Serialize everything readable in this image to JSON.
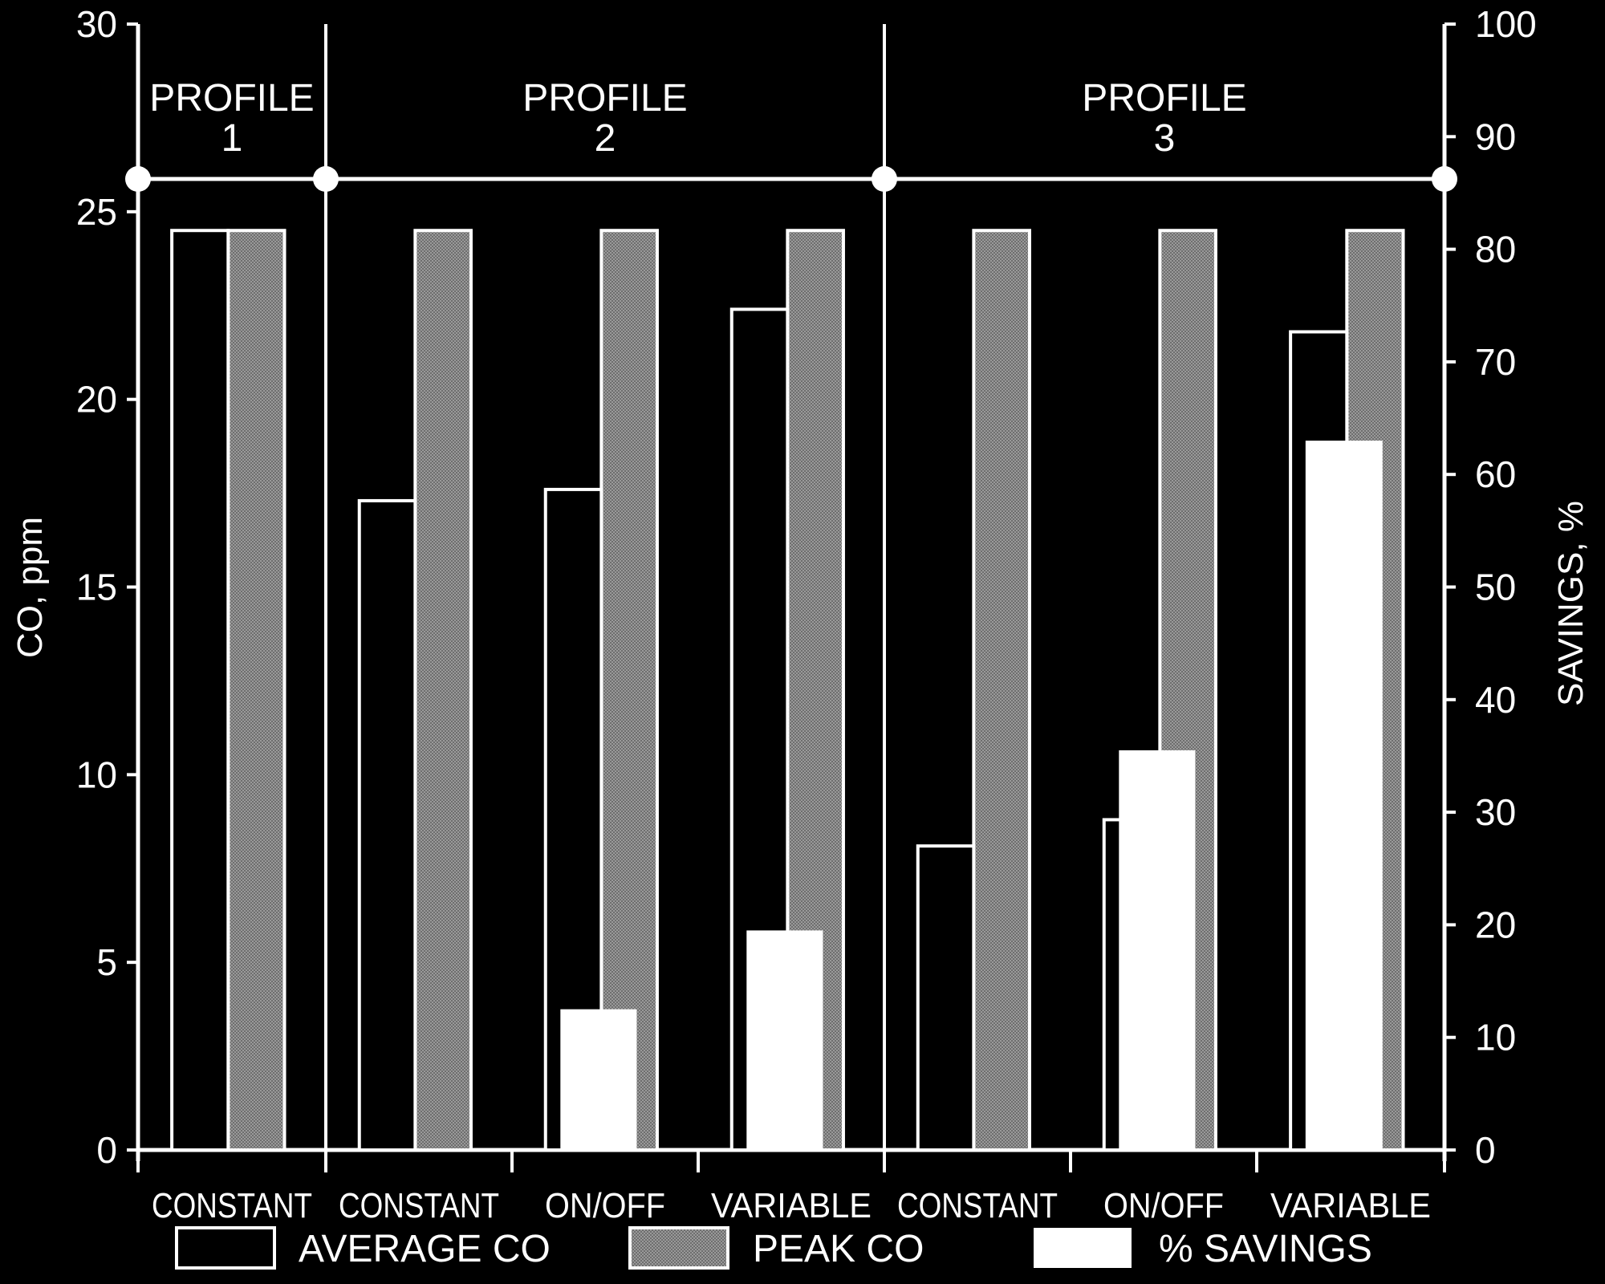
{
  "chart_data": {
    "type": "bar",
    "left_axis": {
      "label": "CO, ppm",
      "ylim": [
        0,
        30
      ],
      "ticks": [
        "0",
        "5",
        "10",
        "15",
        "20",
        "25",
        "30"
      ]
    },
    "right_axis": {
      "label": "SAVINGS, %",
      "ylim": [
        0,
        100
      ],
      "ticks": [
        "0",
        "10",
        "20",
        "30",
        "40",
        "50",
        "60",
        "70",
        "80",
        "90",
        "100"
      ]
    },
    "profiles": [
      {
        "label_line1": "PROFILE",
        "label_line2": "1",
        "span": [
          0,
          1
        ]
      },
      {
        "label_line1": "PROFILE",
        "label_line2": "2",
        "span": [
          1,
          4
        ]
      },
      {
        "label_line1": "PROFILE",
        "label_line2": "3",
        "span": [
          4,
          7
        ]
      }
    ],
    "categories": [
      "CONSTANT",
      "CONSTANT",
      "ON/OFF",
      "VARIABLE",
      "CONSTANT",
      "ON/OFF",
      "VARIABLE"
    ],
    "series": [
      {
        "name": "AVERAGE CO",
        "axis": "left",
        "values": [
          24.5,
          17.3,
          17.6,
          22.4,
          8.1,
          8.8,
          21.8
        ]
      },
      {
        "name": "PEAK CO",
        "axis": "left",
        "values": [
          24.5,
          24.5,
          24.5,
          24.5,
          24.5,
          24.5,
          24.5
        ]
      },
      {
        "name": "% SAVINGS",
        "axis": "right",
        "values": [
          0,
          0,
          12.5,
          19.5,
          0,
          35.5,
          63
        ]
      }
    ],
    "colors": {
      "background": "#000000",
      "axis": "#ffffff",
      "average": "#000000",
      "peak": "#8c8c8c",
      "savings": "#ffffff"
    },
    "legend": {
      "placement": "bottom"
    }
  }
}
